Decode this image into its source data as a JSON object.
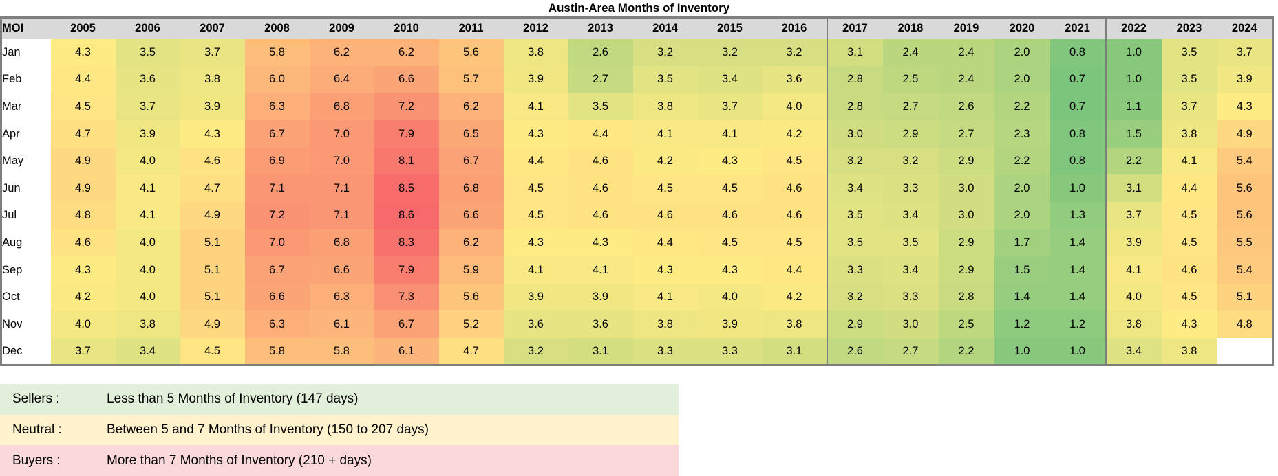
{
  "title": "Austin-Area Months of Inventory",
  "chart_data": {
    "type": "heatmap",
    "title": "Austin-Area Months of Inventory",
    "corner_label": "MOI",
    "columns": [
      "2005",
      "2006",
      "2007",
      "2008",
      "2009",
      "2010",
      "2011",
      "2012",
      "2013",
      "2014",
      "2015",
      "2016",
      "2017",
      "2018",
      "2019",
      "2020",
      "2021",
      "2022",
      "2023",
      "2024"
    ],
    "rows": [
      "Jan",
      "Feb",
      "Mar",
      "Apr",
      "May",
      "Jun",
      "Jul",
      "Aug",
      "Sep",
      "Oct",
      "Nov",
      "Dec"
    ],
    "values": [
      [
        4.3,
        3.5,
        3.7,
        5.8,
        6.2,
        6.2,
        5.6,
        3.8,
        2.6,
        3.2,
        3.2,
        3.2,
        3.1,
        2.4,
        2.4,
        2.0,
        0.8,
        1.0,
        3.5,
        3.7
      ],
      [
        4.4,
        3.6,
        3.8,
        6.0,
        6.4,
        6.6,
        5.7,
        3.9,
        2.7,
        3.5,
        3.4,
        3.6,
        2.8,
        2.5,
        2.4,
        2.0,
        0.7,
        1.0,
        3.5,
        3.9
      ],
      [
        4.5,
        3.7,
        3.9,
        6.3,
        6.8,
        7.2,
        6.2,
        4.1,
        3.5,
        3.8,
        3.7,
        4.0,
        2.8,
        2.7,
        2.6,
        2.2,
        0.7,
        1.1,
        3.7,
        4.3
      ],
      [
        4.7,
        3.9,
        4.3,
        6.7,
        7.0,
        7.9,
        6.5,
        4.3,
        4.4,
        4.1,
        4.1,
        4.2,
        3.0,
        2.9,
        2.7,
        2.3,
        0.8,
        1.5,
        3.8,
        4.9
      ],
      [
        4.9,
        4.0,
        4.6,
        6.9,
        7.0,
        8.1,
        6.7,
        4.4,
        4.6,
        4.2,
        4.3,
        4.5,
        3.2,
        3.2,
        2.9,
        2.2,
        0.8,
        2.2,
        4.1,
        5.4
      ],
      [
        4.9,
        4.1,
        4.7,
        7.1,
        7.1,
        8.5,
        6.8,
        4.5,
        4.6,
        4.5,
        4.5,
        4.6,
        3.4,
        3.3,
        3.0,
        2.0,
        1.0,
        3.1,
        4.4,
        5.6
      ],
      [
        4.8,
        4.1,
        4.9,
        7.2,
        7.1,
        8.6,
        6.6,
        4.5,
        4.6,
        4.6,
        4.6,
        4.6,
        3.5,
        3.4,
        3.0,
        2.0,
        1.3,
        3.7,
        4.5,
        5.6
      ],
      [
        4.6,
        4.0,
        5.1,
        7.0,
        6.8,
        8.3,
        6.2,
        4.3,
        4.3,
        4.4,
        4.5,
        4.5,
        3.5,
        3.5,
        2.9,
        1.7,
        1.4,
        3.9,
        4.5,
        5.5
      ],
      [
        4.3,
        4.0,
        5.1,
        6.7,
        6.6,
        7.9,
        5.9,
        4.1,
        4.1,
        4.3,
        4.3,
        4.4,
        3.3,
        3.4,
        2.9,
        1.5,
        1.4,
        4.1,
        4.6,
        5.4
      ],
      [
        4.2,
        4.0,
        5.1,
        6.6,
        6.3,
        7.3,
        5.6,
        3.9,
        3.9,
        4.1,
        4.0,
        4.2,
        3.2,
        3.3,
        2.8,
        1.4,
        1.4,
        4.0,
        4.5,
        5.1
      ],
      [
        4.0,
        3.8,
        4.9,
        6.3,
        6.1,
        6.7,
        5.2,
        3.6,
        3.6,
        3.8,
        3.9,
        3.8,
        2.9,
        3.0,
        2.5,
        1.2,
        1.2,
        3.8,
        4.3,
        4.8
      ],
      [
        3.7,
        3.4,
        4.5,
        5.8,
        5.8,
        6.1,
        4.7,
        3.2,
        3.1,
        3.3,
        3.3,
        3.1,
        2.6,
        2.7,
        2.2,
        1.0,
        1.0,
        3.4,
        3.8,
        null
      ]
    ],
    "value_format": "one_decimal",
    "color_scale": {
      "min_value": 0,
      "min_color": "#63BE7B",
      "mid_value": 4.3,
      "mid_color": "#FFEB84",
      "max_value": 8.6,
      "max_color": "#F8696B"
    },
    "header_bg": "#D9D9D9",
    "border_color": "#7F7F7F",
    "separator_before_columns": [
      "2017",
      "2022"
    ],
    "grid": false,
    "legend_position": "bottom"
  },
  "legend": {
    "items": [
      {
        "label": "Sellers :",
        "description": "Less than 5 Months of Inventory (147 days)",
        "color": "#E2EFDA"
      },
      {
        "label": "Neutral :",
        "description": "Between 5 and 7 Months of Inventory (150 to 207 days)",
        "color": "#FFF2CC"
      },
      {
        "label": "Buyers :",
        "description": "More than 7 Months of Inventory (210 + days)",
        "color": "#FBD9DB"
      }
    ]
  }
}
